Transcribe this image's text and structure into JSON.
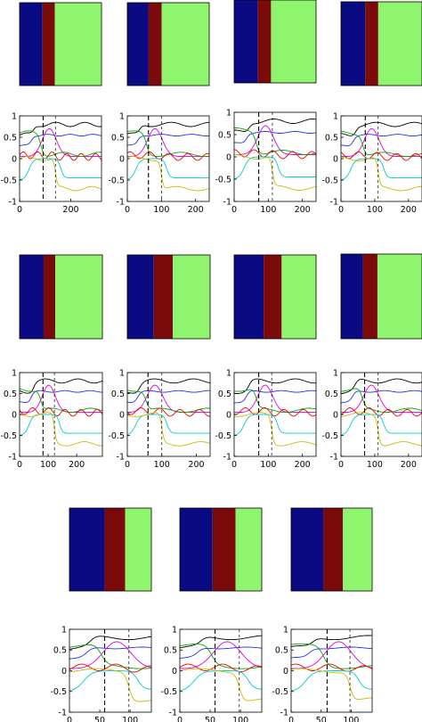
{
  "colors": {
    "band_left": "#0a0a82",
    "band_middle": "#7b0a0a",
    "band_right": "#8ff56e",
    "series": [
      "#000000",
      "#2233ee",
      "#dd00dd",
      "#00aa00",
      "#ee0000",
      "#00cccc",
      "#ccbb00"
    ]
  },
  "chart_data": [
    {
      "type": "line",
      "ylim": [
        -1,
        1
      ],
      "xlim": [
        0,
        320
      ],
      "xticks": [
        "0",
        "200"
      ],
      "yticks": [
        "1",
        "0.5",
        "0",
        "-0.5",
        "-1"
      ],
      "change_points": [
        92,
        140
      ],
      "bands": [
        0.28,
        0.43
      ]
    },
    {
      "type": "line",
      "ylim": [
        -1,
        1
      ],
      "xlim": [
        0,
        240
      ],
      "xticks": [
        "0",
        "100",
        "200"
      ],
      "yticks": [
        "1",
        "0.5",
        "0",
        "-0.5",
        "-1"
      ],
      "change_points": [
        62,
        100
      ],
      "bands": [
        0.26,
        0.42
      ]
    },
    {
      "type": "line",
      "ylim": [
        -1,
        1
      ],
      "xlim": [
        0,
        240
      ],
      "xticks": [
        "0",
        "100",
        "200"
      ],
      "yticks": [
        "1",
        "0.5",
        "0",
        "-0.5",
        "-1"
      ],
      "change_points": [
        72,
        112
      ],
      "bands": [
        0.29,
        0.45
      ]
    },
    {
      "type": "line",
      "ylim": [
        -1,
        1
      ],
      "xlim": [
        0,
        240
      ],
      "xticks": [
        "0",
        "100",
        "200"
      ],
      "yticks": [
        "1",
        "0.5",
        "0",
        "-0.5",
        "-1"
      ],
      "change_points": [
        72,
        110
      ],
      "bands": [
        0.3,
        0.46
      ]
    },
    {
      "type": "line",
      "ylim": [
        -1,
        1
      ],
      "xlim": [
        0,
        290
      ],
      "xticks": [
        "0",
        "100",
        "200"
      ],
      "yticks": [
        "1",
        "0.5",
        "0",
        "-0.5",
        "-1"
      ],
      "change_points": [
        82,
        122
      ],
      "bands": [
        0.29,
        0.43
      ]
    },
    {
      "type": "line",
      "ylim": [
        -1,
        1
      ],
      "xlim": [
        0,
        240
      ],
      "xticks": [
        "0",
        "100",
        "200"
      ],
      "yticks": [
        "1",
        "0.5",
        "0",
        "-0.5",
        "-1"
      ],
      "change_points": [
        60,
        100
      ],
      "bands": [
        0.32,
        0.55
      ]
    },
    {
      "type": "line",
      "ylim": [
        -1,
        1
      ],
      "xlim": [
        0,
        240
      ],
      "xticks": [
        "0",
        "100",
        "200"
      ],
      "yticks": [
        "1",
        "0.5",
        "0",
        "-0.5",
        "-1"
      ],
      "change_points": [
        72,
        110
      ],
      "bands": [
        0.36,
        0.58
      ]
    },
    {
      "type": "line",
      "ylim": [
        -1,
        1
      ],
      "xlim": [
        0,
        240
      ],
      "xticks": [
        "0",
        "100",
        "200"
      ],
      "yticks": [
        "1",
        "0.5",
        "0",
        "-0.5",
        "-1"
      ],
      "change_points": [
        70,
        110
      ],
      "bands": [
        0.27,
        0.45
      ]
    },
    {
      "type": "line",
      "ylim": [
        -1,
        1
      ],
      "xlim": [
        0,
        135
      ],
      "xticks": [
        "0",
        "50",
        "100"
      ],
      "yticks": [
        "1",
        "0.5",
        "0",
        "-0.5",
        "-1"
      ],
      "change_points": [
        58,
        98
      ],
      "bands": [
        0.43,
        0.68
      ]
    },
    {
      "type": "line",
      "ylim": [
        -1,
        1
      ],
      "xlim": [
        0,
        135
      ],
      "xticks": [
        "0",
        "50",
        "100"
      ],
      "yticks": [
        "1",
        "0.5",
        "0",
        "-0.5",
        "-1"
      ],
      "change_points": [
        58,
        98
      ],
      "bands": [
        0.4,
        0.68
      ]
    },
    {
      "type": "line",
      "ylim": [
        -1,
        1
      ],
      "xlim": [
        0,
        135
      ],
      "xticks": [
        "0",
        "50",
        "100"
      ],
      "yticks": [
        "1",
        "0.5",
        "0",
        "-0.5",
        "-1"
      ],
      "change_points": [
        60,
        98
      ],
      "bands": [
        0.4,
        0.64
      ]
    }
  ]
}
